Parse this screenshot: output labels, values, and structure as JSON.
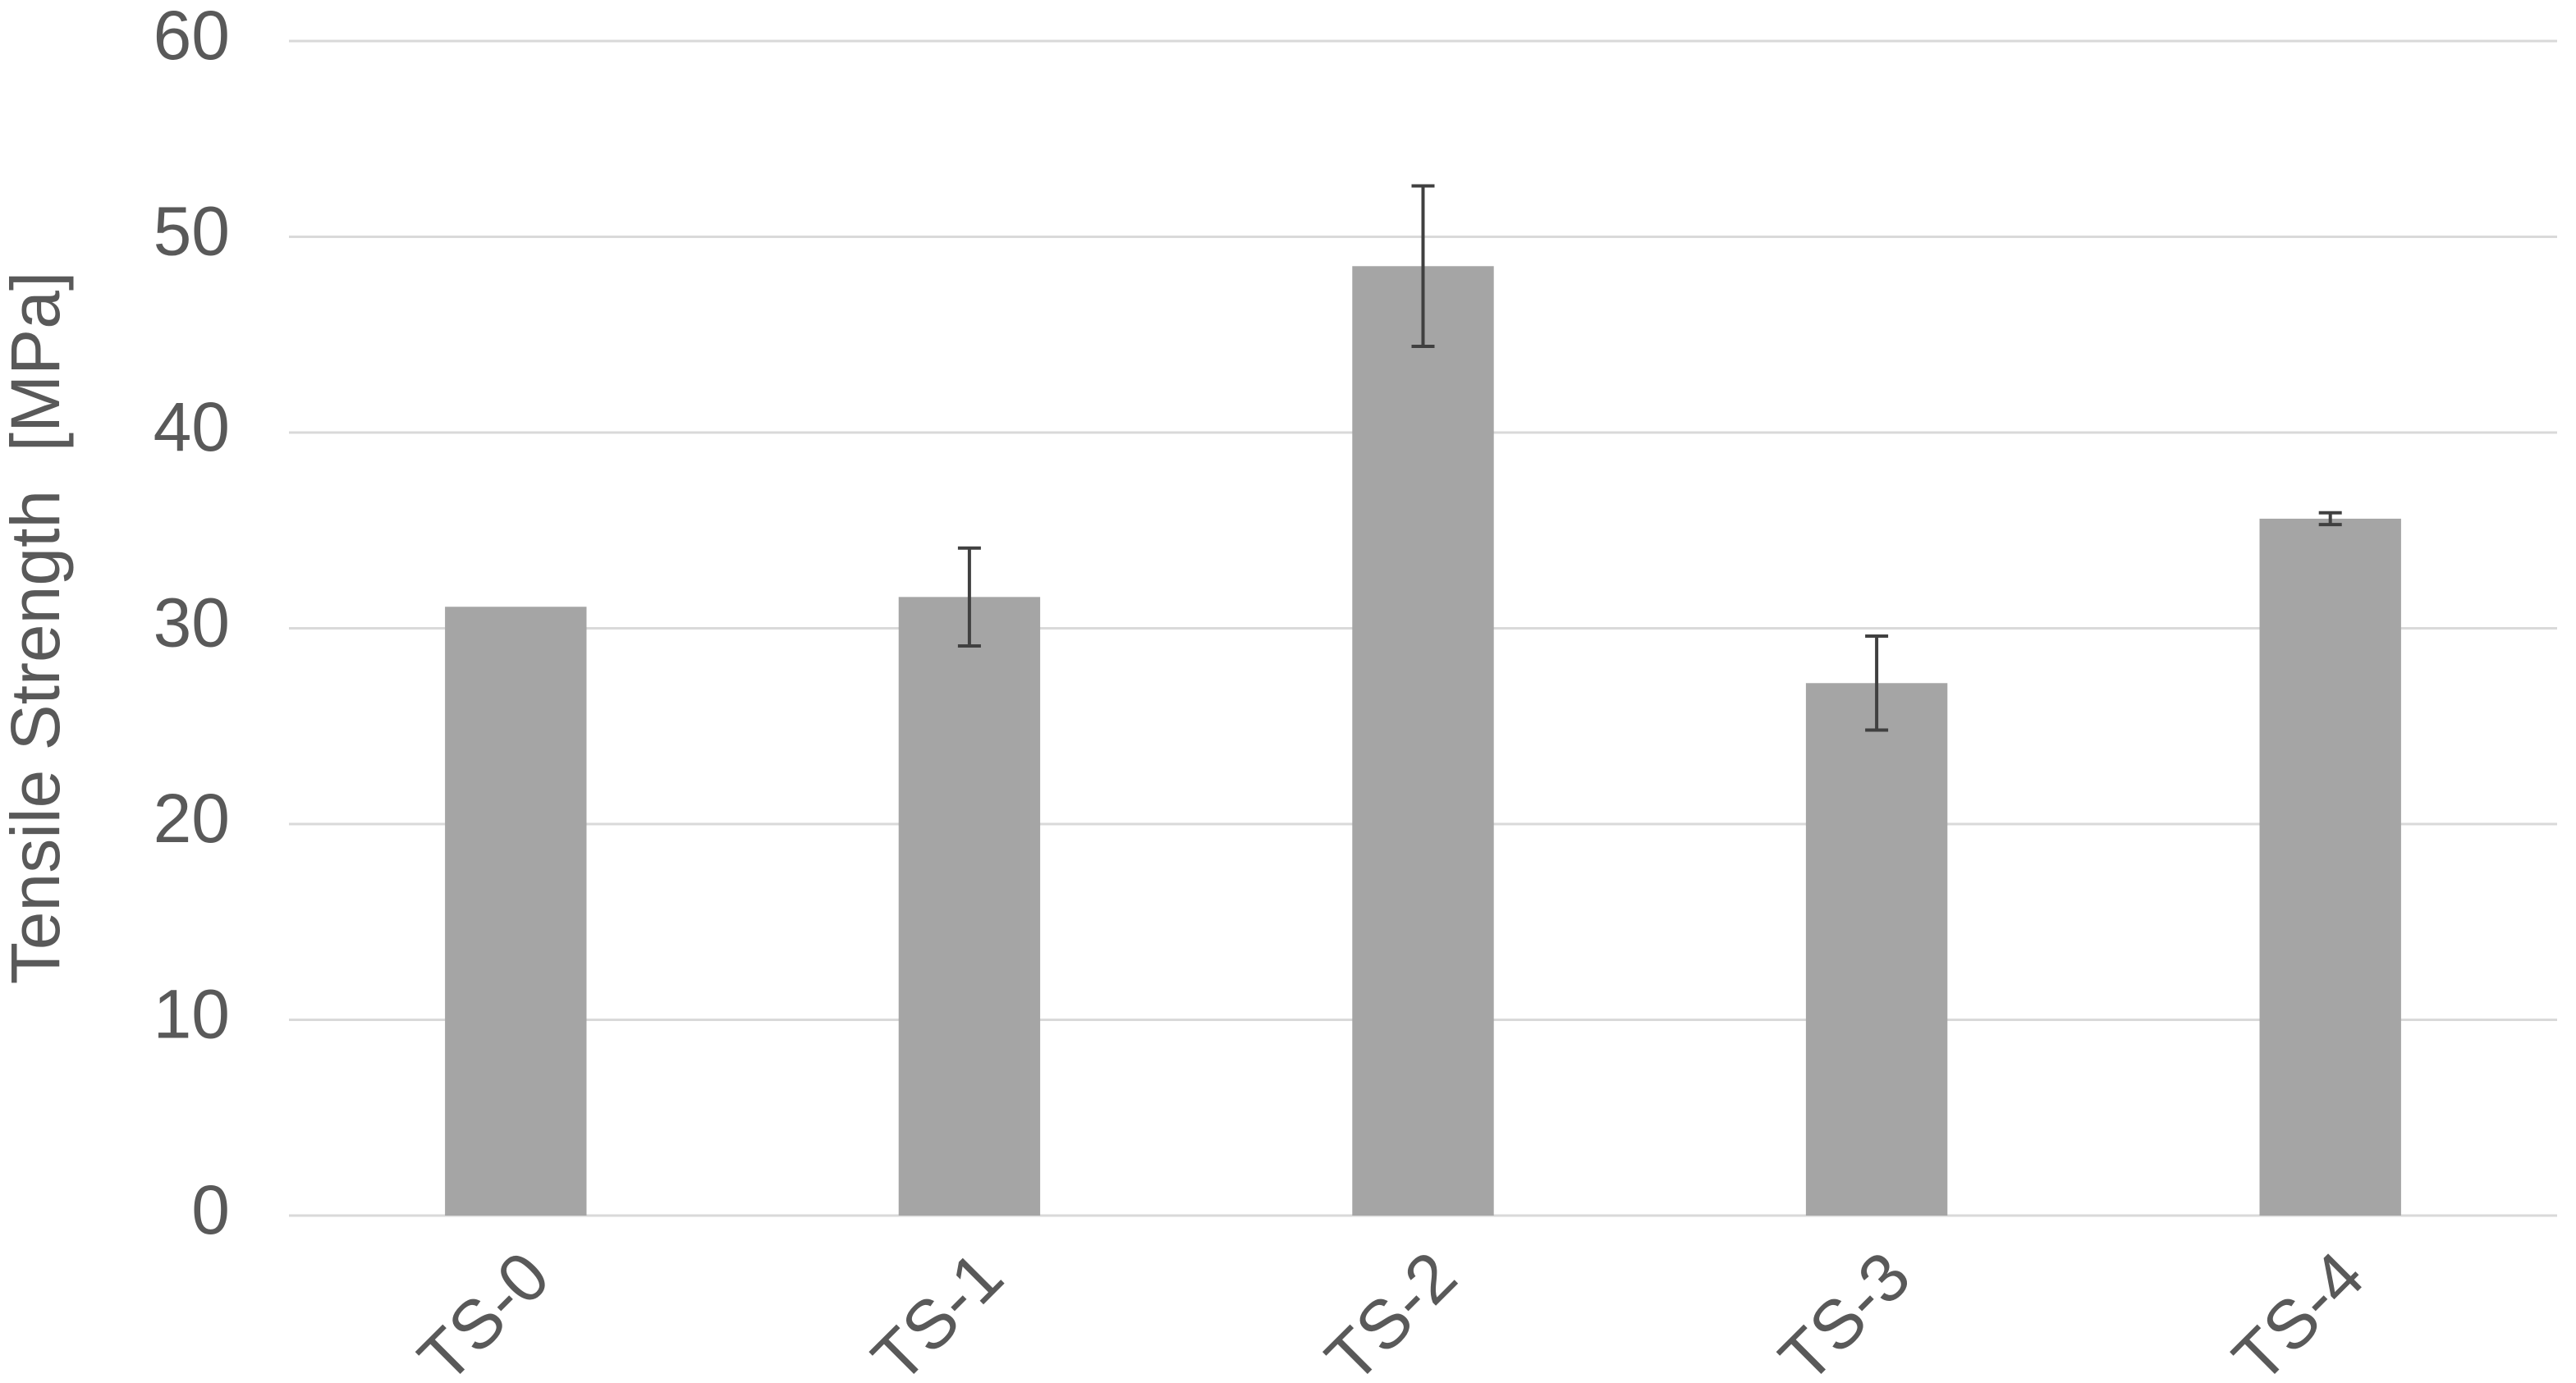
{
  "chart_data": {
    "type": "bar",
    "y_label": "Tensile Strength  [MPa]",
    "categories": [
      "TS-0",
      "TS-1",
      "TS-2",
      "TS-3",
      "TS-4"
    ],
    "values": [
      31.1,
      31.6,
      48.5,
      27.2,
      35.6
    ],
    "errors": [
      null,
      2.5,
      4.1,
      2.4,
      0.3
    ],
    "color": "#a5a5a5",
    "error_color": "#404040",
    "ylim": [
      0,
      60
    ],
    "yticks": [
      0,
      10,
      20,
      30,
      40,
      50,
      60
    ],
    "grid": true
  }
}
